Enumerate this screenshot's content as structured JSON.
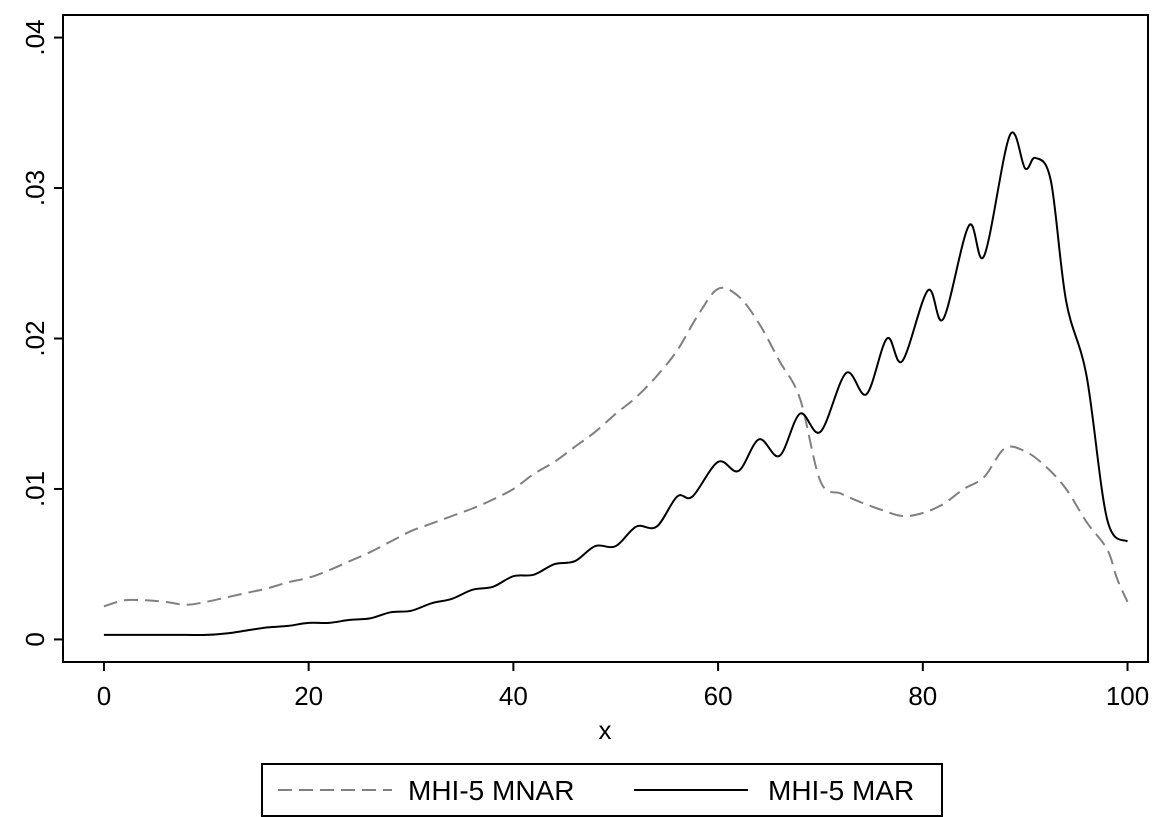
{
  "chart_data": {
    "type": "line",
    "title": "",
    "xlabel": "x",
    "ylabel": "",
    "xlim": [
      -4,
      102
    ],
    "ylim": [
      -0.0015,
      0.0415
    ],
    "xticks": [
      0,
      20,
      40,
      60,
      80,
      100
    ],
    "xtick_labels": [
      "0",
      "20",
      "40",
      "60",
      "80",
      "100"
    ],
    "yticks": [
      0,
      0.01,
      0.02,
      0.03,
      0.04
    ],
    "ytick_labels": [
      "0",
      ".01",
      ".02",
      ".03",
      ".04"
    ],
    "grid": false,
    "legend_position": "bottom",
    "series": [
      {
        "name": "MHI-5 MNAR",
        "color": "#808080",
        "dash": "dashed",
        "x": [
          0,
          2,
          4,
          6,
          8,
          10,
          12,
          14,
          16,
          18,
          20,
          22,
          24,
          26,
          28,
          30,
          32,
          34,
          36,
          38,
          40,
          42,
          44,
          46,
          48,
          50,
          52,
          54,
          56,
          58,
          60,
          62,
          64,
          66,
          68,
          70,
          72,
          74,
          76,
          78,
          80,
          82,
          84,
          86,
          88,
          90,
          92,
          94,
          96,
          98,
          99,
          100
        ],
        "y": [
          0.0022,
          0.0026,
          0.0026,
          0.0025,
          0.0023,
          0.0025,
          0.0028,
          0.0031,
          0.0034,
          0.0038,
          0.0041,
          0.0046,
          0.0052,
          0.0058,
          0.0065,
          0.0072,
          0.0077,
          0.0082,
          0.0087,
          0.0093,
          0.01,
          0.011,
          0.0118,
          0.0128,
          0.0138,
          0.015,
          0.0161,
          0.0175,
          0.0192,
          0.0215,
          0.0233,
          0.0228,
          0.021,
          0.0185,
          0.016,
          0.0105,
          0.0097,
          0.0091,
          0.0086,
          0.0082,
          0.0084,
          0.009,
          0.01,
          0.0108,
          0.0127,
          0.0125,
          0.0115,
          0.01,
          0.0078,
          0.006,
          0.004,
          0.0025
        ]
      },
      {
        "name": "MHI-5 MAR",
        "color": "#000000",
        "dash": "solid",
        "x": [
          0,
          2,
          4,
          6,
          8,
          10,
          12,
          14,
          16,
          18,
          20,
          22,
          24,
          26,
          28,
          30,
          32,
          34,
          36,
          38,
          40,
          42,
          44,
          46,
          48,
          50,
          52,
          54,
          56,
          57.5,
          60,
          62,
          64,
          66,
          68,
          70,
          72.5,
          74.5,
          76.5,
          78,
          80.5,
          82,
          84.5,
          86,
          88.5,
          90,
          91,
          92.5,
          94,
          96,
          98,
          100
        ],
        "y": [
          0.0003,
          0.0003,
          0.0003,
          0.0003,
          0.0003,
          0.0003,
          0.0004,
          0.0006,
          0.0008,
          0.0009,
          0.0011,
          0.0011,
          0.0013,
          0.0014,
          0.0018,
          0.0019,
          0.0024,
          0.0027,
          0.0033,
          0.0035,
          0.0042,
          0.0043,
          0.005,
          0.0052,
          0.0062,
          0.0062,
          0.0075,
          0.0075,
          0.0095,
          0.0095,
          0.0118,
          0.0112,
          0.0133,
          0.0122,
          0.015,
          0.0138,
          0.0177,
          0.0163,
          0.02,
          0.0185,
          0.0232,
          0.0213,
          0.0275,
          0.0255,
          0.0335,
          0.0313,
          0.032,
          0.0305,
          0.0225,
          0.0175,
          0.008,
          0.0065
        ]
      }
    ]
  }
}
